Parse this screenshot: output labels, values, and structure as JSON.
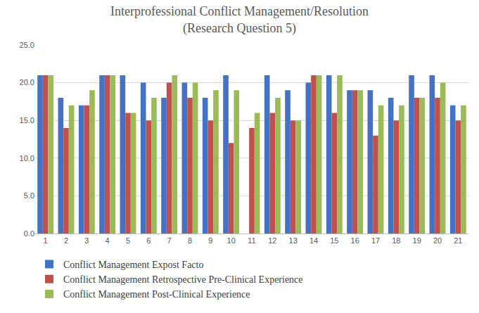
{
  "chart_data": {
    "type": "bar",
    "title": "Interprofessional Conflict Management/Resolution\n(Research Question 5)",
    "categories": [
      "1",
      "2",
      "3",
      "4",
      "5",
      "6",
      "7",
      "8",
      "9",
      "10",
      "11",
      "12",
      "13",
      "14",
      "15",
      "16",
      "17",
      "18",
      "19",
      "20",
      "21"
    ],
    "series": [
      {
        "name": "Conflict Management Expost Facto",
        "color": "#4472c4",
        "values": [
          21,
          18,
          17,
          21,
          21,
          20,
          18,
          20,
          18,
          21,
          null,
          21,
          19,
          20,
          21,
          19,
          19,
          18,
          21,
          21,
          17
        ]
      },
      {
        "name": "Conflict Management Retrospective Pre-Clinical Experience",
        "color": "#c0504d",
        "values": [
          21,
          14,
          17,
          21,
          16,
          15,
          20,
          18,
          15,
          12,
          14,
          16,
          15,
          21,
          16,
          19,
          13,
          15,
          18,
          18,
          15
        ]
      },
      {
        "name": "Conflict Management Post-Clinical Experience",
        "color": "#9bbb59",
        "values": [
          21,
          17,
          19,
          21,
          16,
          18,
          21,
          20,
          19,
          19,
          16,
          18,
          15,
          21,
          21,
          19,
          17,
          17,
          18,
          20,
          17
        ]
      }
    ],
    "ylim": [
      0,
      25
    ],
    "yticks": [
      {
        "value": 0,
        "label": "0.0"
      },
      {
        "value": 5,
        "label": "5.0"
      },
      {
        "value": 10,
        "label": "10.0"
      },
      {
        "value": 15,
        "label": "15.0"
      },
      {
        "value": 20,
        "label": "20.0"
      },
      {
        "value": 25,
        "label": "25.0"
      }
    ],
    "grid": true,
    "legend": "bottom"
  }
}
